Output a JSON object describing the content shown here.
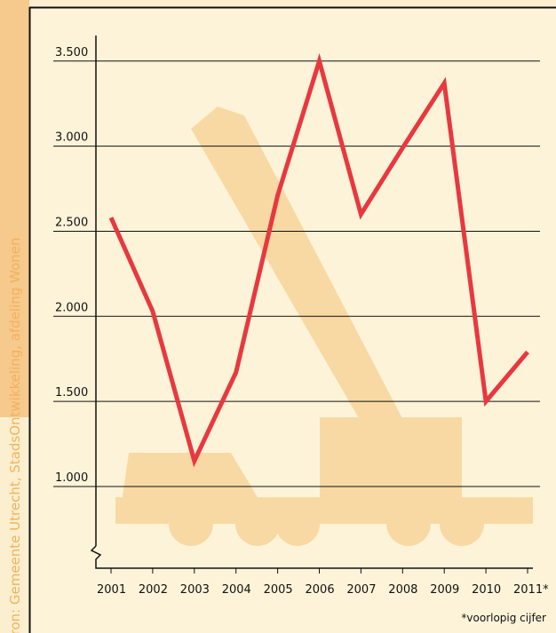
{
  "chart_data": {
    "type": "line",
    "source": "bron: Gemeente Utrecht, StadsOntwikkeling, afdeling Wonen",
    "footnote": "*voorlopig cijfer",
    "categories": [
      "2001",
      "2002",
      "2003",
      "2004",
      "2005",
      "2006",
      "2007",
      "2008",
      "2009",
      "2010",
      "2011*"
    ],
    "values": [
      2580,
      2030,
      1150,
      1670,
      2710,
      3500,
      2600,
      2990,
      3370,
      1500,
      1790
    ],
    "color": "#e8383f",
    "ylim": [
      520,
      3650
    ],
    "yticks": [
      {
        "value": 1000,
        "label": "1.000"
      },
      {
        "value": 1500,
        "label": "1.500"
      },
      {
        "value": 2000,
        "label": "2.000"
      },
      {
        "value": 2500,
        "label": "2.500"
      },
      {
        "value": 3000,
        "label": "3.000"
      },
      {
        "value": 3500,
        "label": "3.500"
      }
    ],
    "grid": true
  }
}
